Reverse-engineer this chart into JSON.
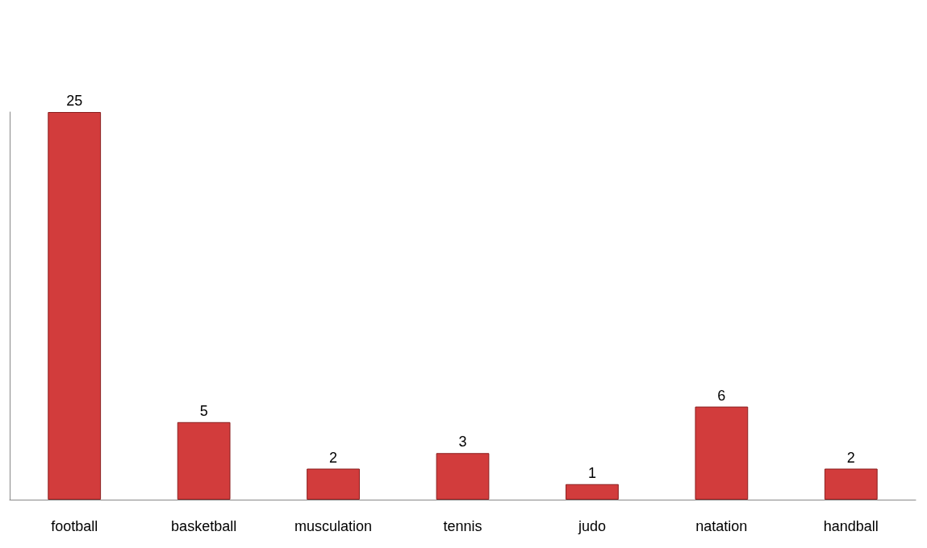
{
  "chart_data": {
    "type": "bar",
    "categories": [
      "football",
      "basketball",
      "musculation",
      "tennis",
      "judo",
      "natation",
      "handball"
    ],
    "values": [
      25,
      5,
      2,
      3,
      1,
      6,
      2
    ],
    "color": "#d23c3c",
    "data_labels": true
  }
}
